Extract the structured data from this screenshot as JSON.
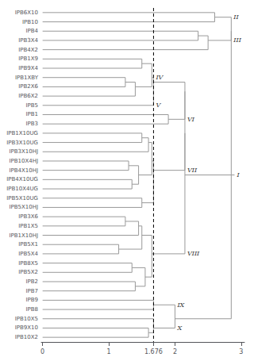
{
  "chart_data": {
    "type": "dendrogram",
    "categories": [
      "IPB6X10",
      "IPB10",
      "IPB4",
      "IPB3X4",
      "IPB4X2",
      "IPB1X9",
      "IPB9X4",
      "IPB1XBY",
      "IPB2X6",
      "IPB6X2",
      "IPB5",
      "IPB1",
      "IPB3",
      "IPB1X10UG",
      "IPB3X10UG",
      "IPB3X10HJ",
      "IPB10X4HJ",
      "IPB4X10HJ",
      "IPB4X10UG",
      "IPB10X4UG",
      "IPB5X10UG",
      "IPB5X10HJ",
      "IPB3X6",
      "IPB1X5",
      "IPB1X10HJ",
      "IPB5X1",
      "IPB5X4",
      "IPB8X5",
      "IPB5X2",
      "IPB2",
      "IPB7",
      "IPB9",
      "IPB8",
      "IPB10X5",
      "IPB9X10",
      "IPB10X2"
    ],
    "tree": {
      "height": 2.9,
      "label": "I",
      "children": [
        {
          "height": 2.85,
          "children": [
            {
              "height": 2.85,
              "children": [
                {
                  "height": 2.6,
                  "label": "II",
                  "children": [
                    "IPB6X10",
                    "IPB10"
                  ]
                },
                {
                  "height": 2.5,
                  "label": "III",
                  "children": [
                    {
                      "height": 2.35,
                      "children": [
                        "IPB4",
                        "IPB3X4"
                      ]
                    },
                    "IPB4X2"
                  ]
                }
              ]
            },
            {
              "height": 2.15,
              "children": [
                {
                  "height": 2.15,
                  "children": [
                    {
                      "height": 2.15,
                      "children": [
                        {
                          "height": 1.676,
                          "children": [
                            {
                              "height": 1.65,
                              "label": "IV",
                              "children": [
                                {
                                  "height": 1.5,
                                  "children": [
                                    "IPB1X9",
                                    "IPB9X4"
                                  ]
                                },
                                {
                                  "height": 1.4,
                                  "children": [
                                    {
                                      "height": 1.25,
                                      "children": [
                                        "IPB1XBY",
                                        "IPB2X6"
                                      ]
                                    },
                                    "IPB6X2"
                                  ]
                                }
                              ]
                            },
                            {
                              "name": "IPB5",
                              "label": "V"
                            }
                          ]
                        },
                        {
                          "height": 1.9,
                          "label": "VI",
                          "children": [
                            "IPB1",
                            "IPB3"
                          ]
                        }
                      ]
                    },
                    {
                      "height": 1.676,
                      "label": "VII",
                      "children": [
                        {
                          "height": 1.65,
                          "children": [
                            {
                              "height": 1.6,
                              "children": [
                                {
                                  "height": 1.5,
                                  "children": [
                                    "IPB1X10UG",
                                    "IPB3X10UG"
                                  ]
                                },
                                "IPB3X10HJ"
                              ]
                            },
                            {
                              "height": 1.45,
                              "children": [
                                {
                                  "height": 1.3,
                                  "children": [
                                    "IPB10X4HJ",
                                    "IPB4X10HJ"
                                  ]
                                },
                                {
                                  "height": 1.35,
                                  "children": [
                                    "IPB4X10UG",
                                    "IPB10X4UG"
                                  ]
                                }
                              ]
                            }
                          ]
                        },
                        {
                          "height": 1.5,
                          "children": [
                            "IPB5X10UG",
                            "IPB5X10HJ"
                          ]
                        }
                      ]
                    }
                  ]
                },
                {
                  "height": 1.65,
                  "label": "VIII",
                  "children": [
                    {
                      "height": 1.5,
                      "children": [
                        {
                          "height": 1.45,
                          "children": [
                            {
                              "height": 1.25,
                              "children": [
                                "IPB3X6",
                                "IPB1X5"
                              ]
                            },
                            "IPB1X10HJ"
                          ]
                        },
                        {
                          "height": 1.15,
                          "children": [
                            "IPB5X1",
                            "IPB5X4"
                          ]
                        }
                      ]
                    },
                    {
                      "height": 1.55,
                      "children": [
                        {
                          "height": 1.35,
                          "children": [
                            "IPB8X5",
                            "IPB5X2"
                          ]
                        },
                        {
                          "height": 1.4,
                          "children": [
                            "IPB2",
                            "IPB7"
                          ]
                        }
                      ]
                    }
                  ]
                }
              ]
            },
            {
              "height": 2.0,
              "children": [
                {
                  "height": 1.676,
                  "label": "IX",
                  "children": [
                    "IPB9",
                    "IPB8"
                  ]
                },
                {
                  "height": 1.676,
                  "label": "X",
                  "children": [
                    "IPB10X5",
                    {
                      "height": 1.6,
                      "children": [
                        "IPB9X10",
                        "IPB10X2"
                      ]
                    }
                  ]
                }
              ]
            }
          ]
        }
      ]
    },
    "color": "#999999",
    "reference_line": {
      "x": 1.676,
      "color": "#000000",
      "line_style": "dashed"
    },
    "xlim": [
      -0.02,
      3.05
    ],
    "xticks": [
      0,
      1,
      1.676,
      2,
      3
    ],
    "grid": false
  }
}
